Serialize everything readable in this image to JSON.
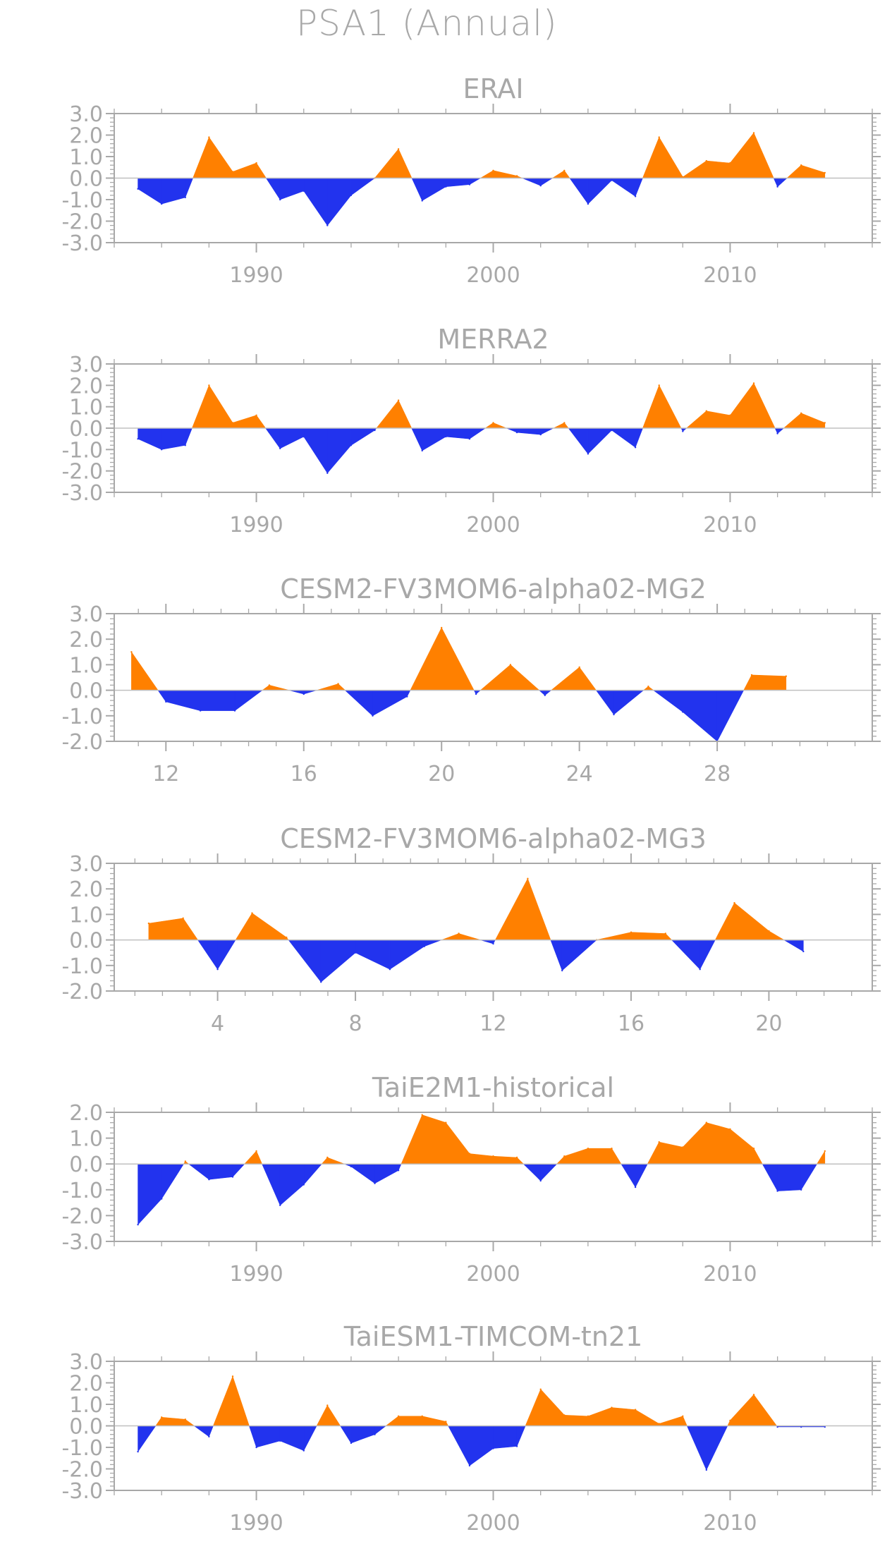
{
  "title": "PSA1  (Annual)",
  "colors": {
    "positive": "#ff8000",
    "negative": "#2233ee",
    "axis": "#a8a8a8",
    "zero_line": "#c0c0c0"
  },
  "chart_data": [
    {
      "type": "area",
      "title": "ERAI",
      "xlim": [
        1984,
        2016
      ],
      "ylim": [
        -3,
        3
      ],
      "xticks": [
        1990,
        2000,
        2010
      ],
      "yticks": [
        3.0,
        2.0,
        1.0,
        0.0,
        -1.0,
        -2.0,
        -3.0
      ],
      "ytick_labels": [
        "3.0",
        "2.0",
        "1.0",
        "0.0",
        "-1.0",
        "-2.0",
        "-3.0"
      ],
      "x": [
        1985,
        1986,
        1987,
        1988,
        1989,
        1990,
        1991,
        1992,
        1993,
        1994,
        1995,
        1996,
        1997,
        1998,
        1999,
        2000,
        2001,
        2002,
        2003,
        2004,
        2005,
        2006,
        2007,
        2008,
        2009,
        2010,
        2011,
        2012,
        2013,
        2014
      ],
      "values": [
        -0.5,
        -1.2,
        -0.9,
        1.9,
        0.3,
        0.7,
        -1.0,
        -0.6,
        -2.2,
        -0.8,
        0.0,
        1.35,
        -1.05,
        -0.4,
        -0.3,
        0.35,
        0.1,
        -0.35,
        0.35,
        -1.2,
        -0.1,
        -0.85,
        1.9,
        0.05,
        0.8,
        0.7,
        2.1,
        -0.4,
        0.6,
        0.25
      ]
    },
    {
      "type": "area",
      "title": "MERRA2",
      "xlim": [
        1984,
        2016
      ],
      "ylim": [
        -3,
        3
      ],
      "xticks": [
        1990,
        2000,
        2010
      ],
      "yticks": [
        3.0,
        2.0,
        1.0,
        0.0,
        -1.0,
        -2.0,
        -3.0
      ],
      "ytick_labels": [
        "3.0",
        "2.0",
        "1.0",
        "0.0",
        "-1.0",
        "-2.0",
        "-3.0"
      ],
      "x": [
        1985,
        1986,
        1987,
        1988,
        1989,
        1990,
        1991,
        1992,
        1993,
        1994,
        1995,
        1996,
        1997,
        1998,
        1999,
        2000,
        2001,
        2002,
        2003,
        2004,
        2005,
        2006,
        2007,
        2008,
        2009,
        2010,
        2011,
        2012,
        2013,
        2014
      ],
      "values": [
        -0.5,
        -1.0,
        -0.8,
        2.0,
        0.25,
        0.6,
        -0.95,
        -0.4,
        -2.1,
        -0.8,
        -0.1,
        1.3,
        -1.05,
        -0.4,
        -0.5,
        0.25,
        -0.2,
        -0.3,
        0.25,
        -1.2,
        -0.1,
        -0.9,
        2.0,
        -0.15,
        0.8,
        0.6,
        2.1,
        -0.25,
        0.7,
        0.25
      ]
    },
    {
      "type": "area",
      "title": "CESM2-FV3MOM6-alpha02-MG2",
      "xlim": [
        10.5,
        32.5
      ],
      "ylim": [
        -2,
        3
      ],
      "xticks": [
        12,
        16,
        20,
        24,
        28
      ],
      "yticks": [
        3.0,
        2.0,
        1.0,
        0.0,
        -1.0,
        -2.0
      ],
      "ytick_labels": [
        "3.0",
        "2.0",
        "1.0",
        "0.0",
        "-1.0",
        "-2.0"
      ],
      "x": [
        11,
        12,
        13,
        14,
        15,
        16,
        17,
        18,
        19,
        20,
        21,
        22,
        23,
        24,
        25,
        26,
        27,
        28,
        29,
        30
      ],
      "values": [
        1.5,
        -0.45,
        -0.8,
        -0.8,
        0.2,
        -0.15,
        0.25,
        -1.0,
        -0.25,
        2.45,
        -0.15,
        1.0,
        -0.2,
        0.9,
        -0.95,
        0.15,
        -0.85,
        -2.0,
        0.6,
        0.55
      ]
    },
    {
      "type": "area",
      "title": "CESM2-FV3MOM6-alpha02-MG3",
      "xlim": [
        1,
        23
      ],
      "ylim": [
        -2,
        3
      ],
      "xticks": [
        4,
        8,
        12,
        16,
        20
      ],
      "yticks": [
        3.0,
        2.0,
        1.0,
        0.0,
        -1.0,
        -2.0
      ],
      "ytick_labels": [
        "3.0",
        "2.0",
        "1.0",
        "0.0",
        "-1.0",
        "-2.0"
      ],
      "x": [
        2,
        3,
        4,
        5,
        6,
        7,
        8,
        9,
        10,
        11,
        12,
        13,
        14,
        15,
        16,
        17,
        18,
        19,
        20,
        21
      ],
      "values": [
        0.65,
        0.85,
        -1.15,
        1.05,
        0.1,
        -1.65,
        -0.5,
        -1.15,
        -0.25,
        0.25,
        -0.15,
        2.4,
        -1.2,
        0.0,
        0.3,
        0.25,
        -1.15,
        1.45,
        0.35,
        -0.45
      ]
    },
    {
      "type": "area",
      "title": "TaiE2M1-historical",
      "xlim": [
        1984,
        2016
      ],
      "ylim": [
        -3,
        2
      ],
      "xticks": [
        1990,
        2000,
        2010
      ],
      "yticks": [
        2.0,
        1.0,
        0.0,
        -1.0,
        -2.0,
        -3.0
      ],
      "ytick_labels": [
        "2.0",
        "1.0",
        "0.0",
        "-1.0",
        "-2.0",
        "-3.0"
      ],
      "x": [
        1985,
        1986,
        1987,
        1988,
        1989,
        1990,
        1991,
        1992,
        1993,
        1994,
        1995,
        1996,
        1997,
        1998,
        1999,
        2000,
        2001,
        2002,
        2003,
        2004,
        2005,
        2006,
        2007,
        2008,
        2009,
        2010,
        2011,
        2012,
        2013,
        2014
      ],
      "values": [
        -2.35,
        -1.35,
        0.1,
        -0.6,
        -0.5,
        0.5,
        -1.6,
        -0.8,
        0.25,
        -0.1,
        -0.75,
        -0.25,
        1.9,
        1.6,
        0.4,
        0.3,
        0.25,
        -0.65,
        0.3,
        0.6,
        0.6,
        -0.9,
        0.85,
        0.65,
        1.6,
        1.35,
        0.6,
        -1.05,
        -1.0,
        0.5
      ]
    },
    {
      "type": "area",
      "title": "TaiESM1-TIMCOM-tn21",
      "xlim": [
        1984,
        2016
      ],
      "ylim": [
        -3,
        3
      ],
      "xticks": [
        1990,
        2000,
        2010
      ],
      "yticks": [
        3.0,
        2.0,
        1.0,
        0.0,
        -1.0,
        -2.0,
        -3.0
      ],
      "ytick_labels": [
        "3.0",
        "2.0",
        "1.0",
        "0.0",
        "-1.0",
        "-2.0",
        "-3.0"
      ],
      "x": [
        1985,
        1986,
        1987,
        1988,
        1989,
        1990,
        1991,
        1992,
        1993,
        1994,
        1995,
        1996,
        1997,
        1998,
        1999,
        2000,
        2001,
        2002,
        2003,
        2004,
        2005,
        2006,
        2007,
        2008,
        2009,
        2010,
        2011,
        2012,
        2013,
        2014
      ],
      "values": [
        -1.2,
        0.4,
        0.3,
        -0.5,
        2.3,
        -1.0,
        -0.7,
        -1.15,
        0.95,
        -0.8,
        -0.4,
        0.45,
        0.45,
        0.2,
        -1.85,
        -1.05,
        -0.95,
        1.7,
        0.5,
        0.45,
        0.85,
        0.75,
        0.1,
        0.45,
        -2.05,
        0.25,
        1.45,
        -0.05,
        -0.05,
        -0.05
      ]
    }
  ]
}
